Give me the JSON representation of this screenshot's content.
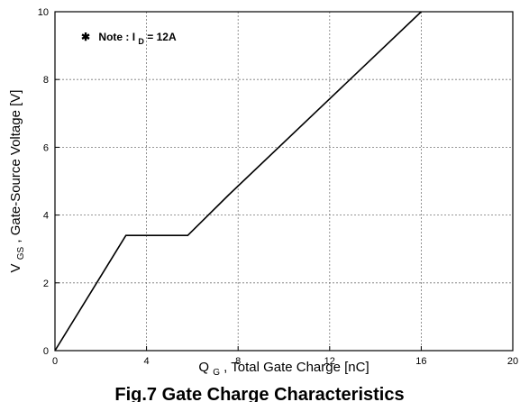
{
  "chart_data": {
    "type": "line",
    "title": "",
    "xlabel": {
      "main": "Q",
      "sub": "G",
      "rest": ", Total Gate Charge [nC]"
    },
    "ylabel": {
      "main": "V",
      "sub": "GS",
      "rest": ", Gate-Source Voltage [V]"
    },
    "xlim": [
      0,
      20
    ],
    "ylim": [
      0,
      10
    ],
    "xticks": [
      0,
      4,
      8,
      12,
      16,
      20
    ],
    "yticks": [
      0,
      2,
      4,
      6,
      8,
      10
    ],
    "grid": true,
    "series": [
      {
        "x": [
          0,
          3.1,
          5.8,
          7.6,
          16.0
        ],
        "y": [
          0,
          3.4,
          3.4,
          4.6,
          10.0
        ]
      }
    ],
    "annotation": {
      "symbol": "✱",
      "prefix": "Note : I",
      "sub": "D",
      "suffix": " = 12A"
    },
    "caption": "Fig.7 Gate Charge Characteristics"
  }
}
